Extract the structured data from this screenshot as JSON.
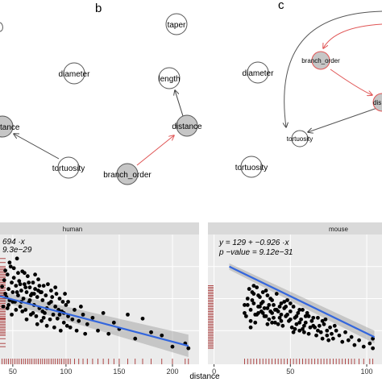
{
  "panels": {
    "b": {
      "letter": "b",
      "nodes": [
        {
          "key": "taper",
          "label": "taper",
          "shaded": false
        },
        {
          "key": "diameter",
          "label": "diameter",
          "shaded": false
        },
        {
          "key": "length",
          "label": "length",
          "shaded": false
        },
        {
          "key": "distance",
          "label": "distance",
          "shaded": true
        },
        {
          "key": "distance_left",
          "label": "tance",
          "shaded": true
        },
        {
          "key": "tortuosity",
          "label": "tortuosity",
          "shaded": false
        },
        {
          "key": "branch_order",
          "label": "branch_order",
          "shaded": true
        }
      ],
      "edges": [
        {
          "from": "distance",
          "to": "length",
          "color": "#444444"
        },
        {
          "from": "branch_order",
          "to": "distance",
          "color": "#e05555"
        },
        {
          "from": "tortuosity",
          "to": "distance_left",
          "color": "#444444"
        }
      ]
    },
    "c": {
      "letter": "c",
      "nodes": [
        {
          "key": "branch_order",
          "label": "branch_order",
          "shaded": true
        },
        {
          "key": "diameter",
          "label": "diameter",
          "shaded": false
        },
        {
          "key": "tortuosity_small",
          "label": "tortuosity",
          "shaded": false
        },
        {
          "key": "tortuosity",
          "label": "tortuosity",
          "shaded": false
        },
        {
          "key": "dist_clip",
          "label": "dis",
          "shaded": true
        }
      ]
    }
  },
  "chart_data": {
    "type": "scatter",
    "xlabel": "distance",
    "point_color": "#000000",
    "fit_color": "#3366dd",
    "rug_color": "#a02020",
    "facets": [
      {
        "name": "human",
        "equation": "694 ·x",
        "p_value": "9.3e−29",
        "xlim": [
          38,
          225
        ],
        "ylim": [
          -2,
          160
        ],
        "x_ticks": [
          50,
          100,
          150,
          200
        ],
        "fit": [
          [
            38,
            83
          ],
          [
            215,
            21
          ]
        ],
        "points": [
          [
            40,
            95
          ],
          [
            42,
            103
          ],
          [
            44,
            82
          ],
          [
            45,
            110
          ],
          [
            46,
            92
          ],
          [
            47,
            78
          ],
          [
            48,
            120
          ],
          [
            49,
            100
          ],
          [
            50,
            88
          ],
          [
            51,
            106
          ],
          [
            52,
            76
          ],
          [
            53,
            96
          ],
          [
            54,
            130
          ],
          [
            55,
            84
          ],
          [
            56,
            102
          ],
          [
            57,
            70
          ],
          [
            58,
            90
          ],
          [
            59,
            114
          ],
          [
            60,
            80
          ],
          [
            61,
            98
          ],
          [
            62,
            66
          ],
          [
            63,
            88
          ],
          [
            64,
            108
          ],
          [
            65,
            75
          ],
          [
            66,
            94
          ],
          [
            67,
            60
          ],
          [
            68,
            86
          ],
          [
            69,
            100
          ],
          [
            70,
            72
          ],
          [
            71,
            92
          ],
          [
            72,
            58
          ],
          [
            73,
            82
          ],
          [
            74,
            104
          ],
          [
            75,
            68
          ],
          [
            76,
            88
          ],
          [
            77,
            52
          ],
          [
            78,
            78
          ],
          [
            79,
            96
          ],
          [
            80,
            62
          ],
          [
            81,
            84
          ],
          [
            82,
            46
          ],
          [
            84,
            74
          ],
          [
            86,
            90
          ],
          [
            88,
            60
          ],
          [
            90,
            70
          ],
          [
            92,
            55
          ],
          [
            94,
            80
          ],
          [
            96,
            64
          ],
          [
            98,
            50
          ],
          [
            100,
            72
          ],
          [
            102,
            58
          ],
          [
            104,
            44
          ],
          [
            108,
            66
          ],
          [
            112,
            52
          ],
          [
            116,
            60
          ],
          [
            120,
            48
          ],
          [
            125,
            56
          ],
          [
            130,
            40
          ],
          [
            135,
            62
          ],
          [
            140,
            36
          ],
          [
            145,
            50
          ],
          [
            150,
            42
          ],
          [
            158,
            60
          ],
          [
            165,
            30
          ],
          [
            172,
            55
          ],
          [
            180,
            38
          ],
          [
            190,
            34
          ],
          [
            200,
            20
          ],
          [
            212,
            24
          ],
          [
            215,
            18
          ],
          [
            41,
            70
          ],
          [
            43,
            115
          ],
          [
            45,
            68
          ],
          [
            47,
            125
          ],
          [
            49,
            60
          ],
          [
            51,
            118
          ],
          [
            53,
            66
          ],
          [
            55,
            112
          ],
          [
            57,
            98
          ],
          [
            59,
            64
          ],
          [
            61,
            112
          ],
          [
            63,
            54
          ],
          [
            65,
            100
          ],
          [
            67,
            84
          ],
          [
            69,
            62
          ],
          [
            71,
            110
          ],
          [
            73,
            48
          ],
          [
            75,
            96
          ],
          [
            77,
            88
          ],
          [
            79,
            56
          ],
          [
            83,
            98
          ],
          [
            85,
            54
          ],
          [
            87,
            82
          ],
          [
            89,
            44
          ],
          [
            91,
            86
          ],
          [
            93,
            66
          ],
          [
            95,
            40
          ],
          [
            97,
            76
          ],
          [
            99,
            86
          ],
          [
            101,
            46
          ],
          [
            43,
            86
          ],
          [
            46,
            72
          ],
          [
            50,
            76
          ],
          [
            54,
            88
          ],
          [
            58,
            76
          ],
          [
            62,
            94
          ],
          [
            66,
            78
          ],
          [
            70,
            86
          ],
          [
            74,
            90
          ],
          [
            78,
            64
          ],
          [
            82,
            68
          ],
          [
            86,
            76
          ],
          [
            90,
            94
          ],
          [
            94,
            60
          ],
          [
            98,
            62
          ],
          [
            102,
            76
          ],
          [
            106,
            54
          ],
          [
            110,
            40
          ],
          [
            114,
            70
          ],
          [
            118,
            36
          ]
        ],
        "rug_x": [
          40,
          42,
          44,
          46,
          48,
          50,
          52,
          54,
          56,
          58,
          60,
          62,
          64,
          66,
          68,
          70,
          72,
          74,
          76,
          78,
          80,
          82,
          84,
          86,
          88,
          90,
          92,
          94,
          96,
          98,
          100,
          102,
          104,
          108,
          112,
          116,
          120,
          125,
          130,
          135,
          140,
          145,
          150,
          158,
          165,
          172,
          180,
          190,
          200,
          212,
          215
        ],
        "rug_y": [
          20,
          24,
          30,
          34,
          36,
          38,
          40,
          42,
          44,
          46,
          48,
          50,
          52,
          54,
          55,
          56,
          58,
          60,
          62,
          64,
          66,
          68,
          70,
          72,
          74,
          76,
          78,
          80,
          82,
          84,
          86,
          88,
          90,
          92,
          94,
          96,
          98,
          100,
          102,
          104,
          106,
          108,
          110,
          112,
          114,
          116,
          118,
          120,
          125,
          130
        ]
      },
      {
        "name": "mouse",
        "equation": "y = 129 + −0.926 ·x",
        "p_value": "p −value = 9.12e−31",
        "xlim": [
          -4,
          110
        ],
        "ylim": [
          -2,
          160
        ],
        "x_ticks": [
          0,
          50,
          100
        ],
        "fit": [
          [
            10,
            120
          ],
          [
            105,
            32
          ]
        ],
        "points": [
          [
            20,
            72
          ],
          [
            22,
            80
          ],
          [
            24,
            66
          ],
          [
            25,
            88
          ],
          [
            26,
            74
          ],
          [
            27,
            60
          ],
          [
            28,
            94
          ],
          [
            29,
            70
          ],
          [
            30,
            82
          ],
          [
            31,
            64
          ],
          [
            32,
            76
          ],
          [
            33,
            58
          ],
          [
            34,
            90
          ],
          [
            35,
            68
          ],
          [
            36,
            54
          ],
          [
            37,
            80
          ],
          [
            38,
            62
          ],
          [
            39,
            72
          ],
          [
            40,
            50
          ],
          [
            41,
            86
          ],
          [
            42,
            64
          ],
          [
            43,
            56
          ],
          [
            44,
            74
          ],
          [
            45,
            46
          ],
          [
            46,
            68
          ],
          [
            47,
            58
          ],
          [
            48,
            78
          ],
          [
            49,
            52
          ],
          [
            50,
            64
          ],
          [
            51,
            44
          ],
          [
            52,
            70
          ],
          [
            53,
            56
          ],
          [
            54,
            48
          ],
          [
            55,
            62
          ],
          [
            56,
            40
          ],
          [
            57,
            54
          ],
          [
            58,
            66
          ],
          [
            59,
            46
          ],
          [
            60,
            58
          ],
          [
            62,
            36
          ],
          [
            64,
            52
          ],
          [
            66,
            44
          ],
          [
            68,
            56
          ],
          [
            70,
            38
          ],
          [
            72,
            48
          ],
          [
            74,
            34
          ],
          [
            76,
            44
          ],
          [
            78,
            30
          ],
          [
            80,
            40
          ],
          [
            82,
            34
          ],
          [
            84,
            26
          ],
          [
            86,
            38
          ],
          [
            88,
            28
          ],
          [
            90,
            32
          ],
          [
            92,
            22
          ],
          [
            95,
            28
          ],
          [
            98,
            20
          ],
          [
            102,
            24
          ],
          [
            104,
            18
          ],
          [
            104,
            30
          ],
          [
            21,
            58
          ],
          [
            23,
            92
          ],
          [
            26,
            86
          ],
          [
            29,
            62
          ],
          [
            32,
            62
          ],
          [
            35,
            84
          ],
          [
            38,
            50
          ],
          [
            41,
            66
          ],
          [
            44,
            60
          ],
          [
            47,
            70
          ],
          [
            50,
            74
          ],
          [
            53,
            42
          ],
          [
            56,
            66
          ],
          [
            59,
            38
          ],
          [
            62,
            58
          ],
          [
            65,
            46
          ],
          [
            68,
            40
          ],
          [
            71,
            52
          ],
          [
            74,
            40
          ],
          [
            77,
            36
          ],
          [
            20,
            62
          ],
          [
            22,
            72
          ],
          [
            24,
            52
          ],
          [
            26,
            96
          ],
          [
            28,
            60
          ],
          [
            30,
            70
          ],
          [
            32,
            88
          ],
          [
            34,
            58
          ],
          [
            36,
            72
          ],
          [
            38,
            78
          ],
          [
            40,
            66
          ],
          [
            42,
            48
          ],
          [
            44,
            52
          ],
          [
            46,
            76
          ],
          [
            48,
            60
          ],
          [
            50,
            54
          ],
          [
            52,
            38
          ],
          [
            54,
            58
          ],
          [
            56,
            50
          ],
          [
            58,
            42
          ],
          [
            60,
            50
          ],
          [
            61,
            62
          ],
          [
            63,
            44
          ],
          [
            65,
            56
          ],
          [
            67,
            34
          ],
          [
            69,
            46
          ],
          [
            71,
            30
          ],
          [
            73,
            54
          ],
          [
            75,
            28
          ],
          [
            79,
            46
          ],
          [
            24,
            44
          ],
          [
            25,
            78
          ],
          [
            27,
            50
          ],
          [
            29,
            84
          ],
          [
            31,
            74
          ],
          [
            33,
            68
          ],
          [
            35,
            48
          ],
          [
            37,
            64
          ],
          [
            39,
            56
          ],
          [
            43,
            70
          ]
        ],
        "rug_x": [
          20,
          22,
          24,
          26,
          28,
          30,
          32,
          34,
          36,
          38,
          40,
          42,
          44,
          46,
          48,
          50,
          52,
          54,
          56,
          58,
          60,
          62,
          64,
          66,
          68,
          70,
          72,
          74,
          76,
          78,
          80,
          82,
          84,
          86,
          88,
          90,
          92,
          95,
          98,
          102,
          104
        ],
        "rug_y": [
          18,
          20,
          22,
          24,
          26,
          28,
          30,
          32,
          34,
          36,
          38,
          40,
          42,
          44,
          46,
          48,
          50,
          52,
          54,
          56,
          58,
          60,
          62,
          64,
          66,
          68,
          70,
          72,
          74,
          76,
          78,
          80,
          82,
          84,
          86,
          88,
          90,
          92,
          94,
          96
        ]
      }
    ]
  }
}
